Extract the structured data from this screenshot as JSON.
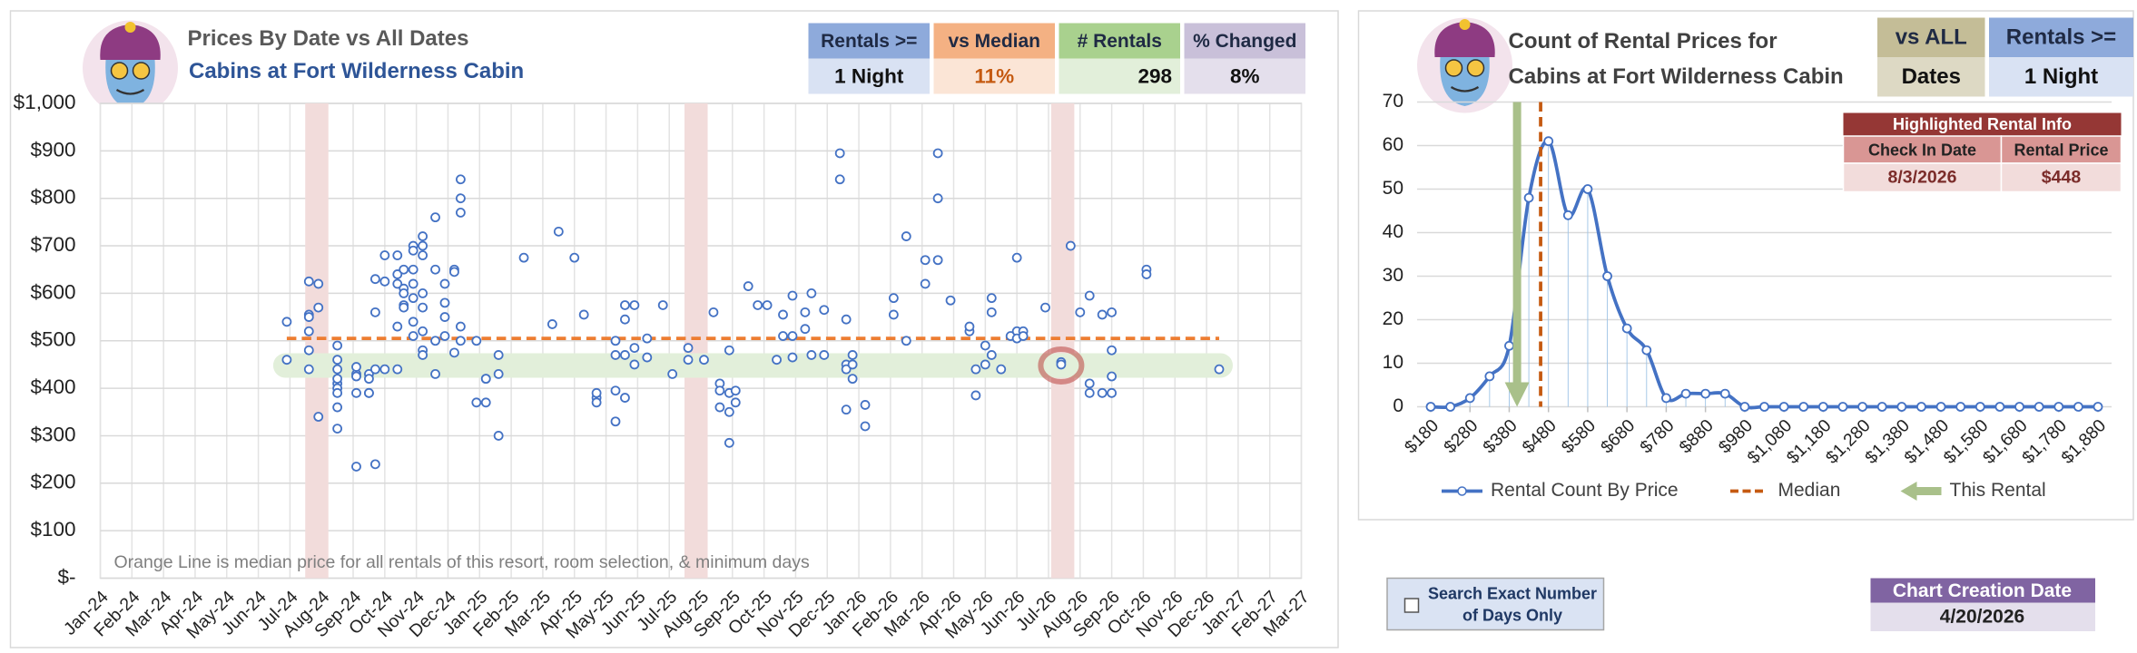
{
  "chart_data": [
    {
      "type": "scatter",
      "title": "Prices By Date vs All Dates",
      "subtitle": "Cabins at Fort Wilderness Cabin",
      "note": "Orange Line is median price for all rentals of this resort, room selection, & minimum days",
      "color": "#4472c4",
      "x": [
        5.9,
        5.9,
        6.6,
        6.6,
        6.6,
        6.6,
        6.6,
        6.6,
        6.9,
        6.9,
        6.9,
        7.5,
        7.5,
        7.5,
        7.5,
        7.5,
        7.5,
        7.5,
        7.5,
        7.5,
        8.1,
        8.1,
        8.1,
        8.1,
        8.1,
        8.5,
        8.5,
        8.5,
        8.5,
        8.7,
        8.7,
        8.7,
        8.7,
        9,
        9,
        9,
        9.4,
        9.4,
        9.4,
        9.4,
        9.4,
        9.6,
        9.6,
        9.6,
        9.6,
        9.6,
        9.9,
        9.9,
        9.9,
        9.9,
        9.9,
        9.9,
        9.9,
        10.2,
        10.2,
        10.2,
        10.2,
        10.2,
        10.2,
        10.2,
        10.2,
        10.6,
        10.6,
        10.6,
        10.6,
        10.9,
        10.9,
        10.9,
        10.9,
        11.2,
        11.2,
        11.2,
        11.4,
        11.4,
        11.4,
        11.4,
        11.4,
        11.9,
        11.9,
        12.2,
        12.2,
        12.2,
        12.6,
        12.6,
        12.6,
        13.4,
        14.3,
        14.5,
        15,
        15.3,
        15.7,
        15.7,
        15.7,
        16.3,
        16.3,
        16.3,
        16.3,
        16.6,
        16.6,
        16.6,
        16.6,
        16.9,
        16.9,
        16.9,
        17.3,
        17.3,
        17.8,
        18.1,
        18.6,
        18.6,
        19.1,
        19.4,
        19.6,
        19.6,
        19.6,
        19.9,
        19.9,
        19.9,
        19.9,
        20.1,
        20.1,
        20.5,
        20.8,
        21.1,
        21.4,
        21.6,
        21.6,
        21.9,
        21.9,
        21.9,
        22.3,
        22.3,
        22.5,
        22.5,
        22.9,
        22.9,
        23.4,
        23.4,
        23.6,
        23.6,
        23.6,
        23.6,
        23.8,
        23.8,
        23.8,
        24.2,
        24.2,
        25.1,
        25.1,
        25.5,
        25.5,
        26.1,
        26.1,
        26.5,
        26.5,
        26.5,
        26.9,
        27.5,
        27.5,
        27.7,
        27.7,
        28,
        28,
        28.2,
        28.2,
        28.2,
        28.5,
        28.8,
        29,
        29,
        29,
        29.2,
        29.2,
        29.9,
        30.4,
        30.4,
        30.7,
        31,
        31.3,
        31.3,
        31.3,
        31.7,
        31.7,
        32,
        32,
        32,
        32,
        33.1,
        33.1,
        35.4
      ],
      "values": [
        540,
        460,
        555,
        550,
        625,
        520,
        480,
        440,
        620,
        570,
        340,
        490,
        460,
        410,
        400,
        390,
        315,
        360,
        440,
        420,
        235,
        430,
        445,
        390,
        425,
        430,
        420,
        390,
        390,
        240,
        560,
        630,
        440,
        680,
        625,
        440,
        680,
        640,
        620,
        530,
        440,
        650,
        610,
        600,
        575,
        570,
        700,
        690,
        650,
        620,
        590,
        540,
        510,
        720,
        700,
        680,
        600,
        570,
        520,
        480,
        470,
        760,
        650,
        500,
        430,
        620,
        580,
        550,
        510,
        650,
        645,
        475,
        840,
        800,
        770,
        530,
        500,
        370,
        500,
        420,
        370,
        420,
        430,
        300,
        470,
        675,
        535,
        730,
        675,
        555,
        380,
        370,
        390,
        500,
        470,
        330,
        395,
        575,
        545,
        470,
        380,
        575,
        485,
        450,
        505,
        465,
        575,
        430,
        460,
        485,
        460,
        560,
        410,
        395,
        360,
        480,
        390,
        350,
        285,
        395,
        370,
        615,
        575,
        575,
        460,
        510,
        555,
        595,
        510,
        465,
        560,
        525,
        600,
        470,
        565,
        470,
        895,
        840,
        545,
        450,
        355,
        440,
        470,
        450,
        420,
        320,
        365,
        590,
        555,
        500,
        720,
        670,
        620,
        895,
        800,
        670,
        585,
        520,
        530,
        440,
        385,
        490,
        450,
        590,
        560,
        470,
        440,
        510,
        520,
        505,
        675,
        520,
        510,
        570,
        455,
        450,
        700,
        560,
        595,
        410,
        390,
        555,
        390,
        480,
        390,
        560,
        425,
        650,
        640,
        440
      ],
      "xlim": [
        0,
        38
      ],
      "xticks": [
        {
          "value": 0,
          "label": "Jan-24"
        },
        {
          "value": 1,
          "label": "Feb-24"
        },
        {
          "value": 2,
          "label": "Mar-24"
        },
        {
          "value": 3,
          "label": "Apr-24"
        },
        {
          "value": 4,
          "label": "May-24"
        },
        {
          "value": 5,
          "label": "Jun-24"
        },
        {
          "value": 6,
          "label": "Jul-24"
        },
        {
          "value": 7,
          "label": "Aug-24"
        },
        {
          "value": 8,
          "label": "Sep-24"
        },
        {
          "value": 9,
          "label": "Oct-24"
        },
        {
          "value": 10,
          "label": "Nov-24"
        },
        {
          "value": 11,
          "label": "Dec-24"
        },
        {
          "value": 12,
          "label": "Jan-25"
        },
        {
          "value": 13,
          "label": "Feb-25"
        },
        {
          "value": 14,
          "label": "Mar-25"
        },
        {
          "value": 15,
          "label": "Apr-25"
        },
        {
          "value": 16,
          "label": "May-25"
        },
        {
          "value": 17,
          "label": "Jun-25"
        },
        {
          "value": 18,
          "label": "Jul-25"
        },
        {
          "value": 19,
          "label": "Aug-25"
        },
        {
          "value": 20,
          "label": "Sep-25"
        },
        {
          "value": 21,
          "label": "Oct-25"
        },
        {
          "value": 22,
          "label": "Nov-25"
        },
        {
          "value": 23,
          "label": "Dec-25"
        },
        {
          "value": 24,
          "label": "Jan-26"
        },
        {
          "value": 25,
          "label": "Feb-26"
        },
        {
          "value": 26,
          "label": "Mar-26"
        },
        {
          "value": 27,
          "label": "Apr-26"
        },
        {
          "value": 28,
          "label": "May-26"
        },
        {
          "value": 29,
          "label": "Jun-26"
        },
        {
          "value": 30,
          "label": "Jul-26"
        },
        {
          "value": 31,
          "label": "Aug-26"
        },
        {
          "value": 32,
          "label": "Sep-26"
        },
        {
          "value": 33,
          "label": "Oct-26"
        },
        {
          "value": 34,
          "label": "Nov-26"
        },
        {
          "value": 35,
          "label": "Dec-26"
        },
        {
          "value": 36,
          "label": "Jan-27"
        },
        {
          "value": 37,
          "label": "Feb-27"
        },
        {
          "value": 38,
          "label": "Mar-27"
        }
      ],
      "ylim": [
        0,
        1000
      ],
      "yticks": [
        {
          "value": 0,
          "label": "$-"
        },
        {
          "value": 100,
          "label": "$100"
        },
        {
          "value": 200,
          "label": "$200"
        },
        {
          "value": 300,
          "label": "$300"
        },
        {
          "value": 400,
          "label": "$400"
        },
        {
          "value": 500,
          "label": "$500"
        },
        {
          "value": 600,
          "label": "$600"
        },
        {
          "value": 700,
          "label": "$700"
        },
        {
          "value": 800,
          "label": "$800"
        },
        {
          "value": 900,
          "label": "$900"
        },
        {
          "value": 1000,
          "label": "$1,000"
        }
      ],
      "grid": true,
      "median": 505,
      "median_color": "#ed7d31",
      "highlight": {
        "x": 30.4,
        "value": 448,
        "color": "#c0504d"
      },
      "highlight_periods": [
        6.85,
        18.85,
        30.45
      ],
      "period_color": "#f2dcdb",
      "band_color": "#e2efda"
    },
    {
      "type": "line",
      "title_lines": [
        "Count of Rental Prices for",
        "Cabins at Fort Wilderness Cabin"
      ],
      "x": [
        180,
        230,
        280,
        330,
        380,
        430,
        480,
        530,
        580,
        630,
        680,
        730,
        780,
        830,
        880,
        930,
        980,
        1030,
        1080,
        1130,
        1180,
        1230,
        1280,
        1330,
        1380,
        1430,
        1480,
        1530,
        1580,
        1630,
        1680,
        1730,
        1780,
        1830,
        1880
      ],
      "series": [
        {
          "name": "Rental Count By Price",
          "color": "#4472c4",
          "values": [
            0,
            0,
            2,
            7,
            14,
            48,
            61,
            44,
            50,
            30,
            18,
            13,
            2,
            3,
            3,
            3,
            0,
            0,
            0,
            0,
            0,
            0,
            0,
            0,
            0,
            0,
            0,
            0,
            0,
            0,
            0,
            0,
            0,
            0,
            0
          ]
        }
      ],
      "xlim": [
        180,
        1880
      ],
      "xticks": [
        {
          "value": 180,
          "label": "$180"
        },
        {
          "value": 280,
          "label": "$280"
        },
        {
          "value": 380,
          "label": "$380"
        },
        {
          "value": 480,
          "label": "$480"
        },
        {
          "value": 580,
          "label": "$580"
        },
        {
          "value": 680,
          "label": "$680"
        },
        {
          "value": 780,
          "label": "$780"
        },
        {
          "value": 880,
          "label": "$880"
        },
        {
          "value": 980,
          "label": "$980"
        },
        {
          "value": 1080,
          "label": "$1,080"
        },
        {
          "value": 1180,
          "label": "$1,180"
        },
        {
          "value": 1280,
          "label": "$1,280"
        },
        {
          "value": 1380,
          "label": "$1,380"
        },
        {
          "value": 1480,
          "label": "$1,480"
        },
        {
          "value": 1580,
          "label": "$1,580"
        },
        {
          "value": 1680,
          "label": "$1,680"
        },
        {
          "value": 1780,
          "label": "$1,780"
        },
        {
          "value": 1880,
          "label": "$1,880"
        }
      ],
      "ylim": [
        0,
        70
      ],
      "yticks": [
        0,
        10,
        20,
        30,
        40,
        50,
        60,
        70
      ],
      "grid": true,
      "reference_lines": [
        {
          "name": "Median",
          "value": 460,
          "color": "#c55a11",
          "style": "dashed"
        },
        {
          "name": "This Rental",
          "value": 400,
          "color": "#a9c08a",
          "style": "arrow"
        }
      ]
    }
  ],
  "dashboard": {
    "left_filters": [
      {
        "label": "Rentals >=",
        "value": "1 Night"
      },
      {
        "label": "vs Median",
        "value": "11%"
      },
      {
        "label": "# Rentals",
        "value": "298"
      },
      {
        "label": "% Changed",
        "value": "8%"
      }
    ],
    "right_filters": [
      {
        "label": "vs ALL",
        "value": "Dates"
      },
      {
        "label": "Rentals >=",
        "value": "1 Night"
      }
    ],
    "highlighted_rental": {
      "title": "Highlighted Rental Info",
      "headers": [
        "Check In Date",
        "Rental Price"
      ],
      "values": [
        "8/3/2026",
        "$448"
      ]
    },
    "checkbox": {
      "label_lines": [
        "Search Exact Number",
        "of Days Only"
      ]
    },
    "creation_date": {
      "label": "Chart Creation Date",
      "value": "4/20/2026"
    }
  }
}
